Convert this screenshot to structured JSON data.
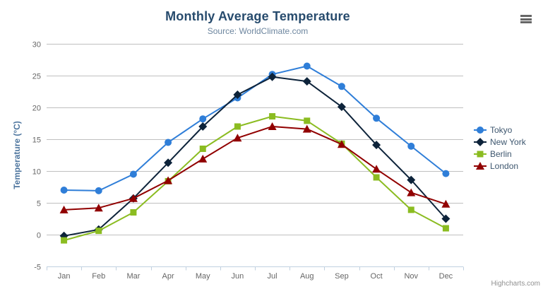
{
  "chart_data": {
    "type": "line",
    "title": "Monthly Average Temperature",
    "subtitle": "Source: WorldClimate.com",
    "categories": [
      "Jan",
      "Feb",
      "Mar",
      "Apr",
      "May",
      "Jun",
      "Jul",
      "Aug",
      "Sep",
      "Oct",
      "Nov",
      "Dec"
    ],
    "xlabel": "",
    "ylabel": "Temperature (°C)",
    "ylim": [
      -5,
      30
    ],
    "ytick_interval": 5,
    "grid": true,
    "legend_position": "right",
    "series": [
      {
        "name": "Tokyo",
        "color": "#2f7ed8",
        "marker": "circle",
        "values": [
          7.0,
          6.9,
          9.5,
          14.5,
          18.2,
          21.5,
          25.2,
          26.5,
          23.3,
          18.3,
          13.9,
          9.6
        ]
      },
      {
        "name": "New York",
        "color": "#0d233a",
        "marker": "diamond",
        "values": [
          -0.2,
          0.8,
          5.7,
          11.3,
          17.0,
          22.0,
          24.8,
          24.1,
          20.1,
          14.1,
          8.6,
          2.5
        ]
      },
      {
        "name": "Berlin",
        "color": "#8bbc21",
        "marker": "square",
        "values": [
          -0.9,
          0.6,
          3.5,
          8.4,
          13.5,
          17.0,
          18.6,
          17.9,
          14.3,
          9.0,
          3.9,
          1.0
        ]
      },
      {
        "name": "London",
        "color": "#910000",
        "marker": "triangle",
        "values": [
          3.9,
          4.2,
          5.7,
          8.5,
          11.9,
          15.2,
          17.0,
          16.6,
          14.2,
          10.3,
          6.6,
          4.8
        ]
      }
    ]
  },
  "colors": {
    "grid_line": "#c0c0c0",
    "axis_line": "#c0d0e0",
    "tick_label": "#666666",
    "axis_title": "#4d759e",
    "legend_text": "#3e576f"
  },
  "credits": {
    "text": "Highcharts.com"
  },
  "export_menu": {
    "icon": "hamburger-icon"
  }
}
